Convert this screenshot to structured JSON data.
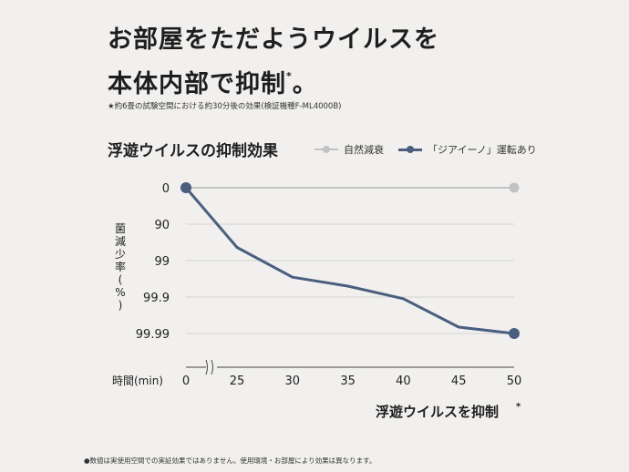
{
  "headline": {
    "line1": "お部屋をただようウイルスを",
    "line2": "本体内部で抑制",
    "line2_mark": "*",
    "line2_end": "。"
  },
  "note": "★約6畳の試験空間における約30分後の効果(検証機種F-ML4000B)",
  "footnote": "●数値は実使用空間での実証効果ではありません。使用環境・お部屋により効果は異なります。",
  "colors": {
    "natural": "#c2c2c2",
    "product": "#4a5f7f",
    "grid": "#d4d4d4"
  },
  "chart_data": {
    "type": "line",
    "title": "浮遊ウイルスの抑制効果",
    "ylabel": "菌減少率(%)",
    "xlabel": "時間(min)",
    "x_break_after": 0,
    "x_ticks": [
      0,
      25,
      30,
      35,
      40,
      45,
      50
    ],
    "y_ticks": [
      "0",
      "90",
      "99",
      "99.9",
      "99.99"
    ],
    "x_axis_caption": "浮遊ウイルスを抑制",
    "x_axis_caption_mark": "*",
    "legend_position": "top-right",
    "series": [
      {
        "name": "自然減衰",
        "points": [
          {
            "x": 0,
            "y": 0
          },
          {
            "x": 50,
            "y": 0
          }
        ]
      },
      {
        "name": "「ジアイーノ」運転あり",
        "points": [
          {
            "x": 0,
            "y": 0
          },
          {
            "x": 25,
            "y": 97.7
          },
          {
            "x": 30,
            "y": 99.65
          },
          {
            "x": 35,
            "y": 99.8
          },
          {
            "x": 40,
            "y": 99.91
          },
          {
            "x": 45,
            "y": 99.985
          },
          {
            "x": 50,
            "y": 99.99
          }
        ]
      }
    ]
  }
}
